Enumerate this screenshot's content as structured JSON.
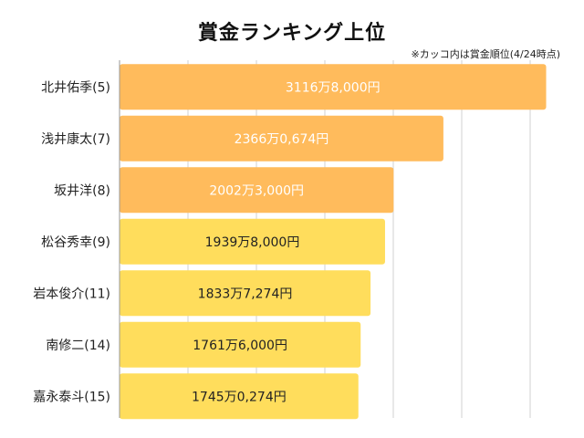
{
  "colors": {
    "top3": "#FFBB5C",
    "rest": "#FFDD5C",
    "grid": "#D0D0D0",
    "axis": "#999999",
    "label_light": "#FFFFFF",
    "label_dark": "#222222"
  },
  "chart_data": {
    "type": "bar",
    "orientation": "horizontal",
    "title": "賞金ランキング上位",
    "note": "※カッコ内は賞金順位(4/24時点)",
    "grid": true,
    "xlim": [
      0,
      32000000
    ],
    "categories": [
      "北井佑季(5)",
      "浅井康太(7)",
      "坂井洋(8)",
      "松谷秀幸(9)",
      "岩本俊介(11)",
      "南修二(14)",
      "嘉永泰斗(15)"
    ],
    "values": [
      31168000,
      23660674,
      20023000,
      19398000,
      18337274,
      17616000,
      17450274
    ],
    "value_labels": [
      "3116万8,000円",
      "2366万0,674円",
      "2002万3,000円",
      "1939万8,000円",
      "1833万7,274円",
      "1761万6,000円",
      "1745万0,274円"
    ]
  }
}
